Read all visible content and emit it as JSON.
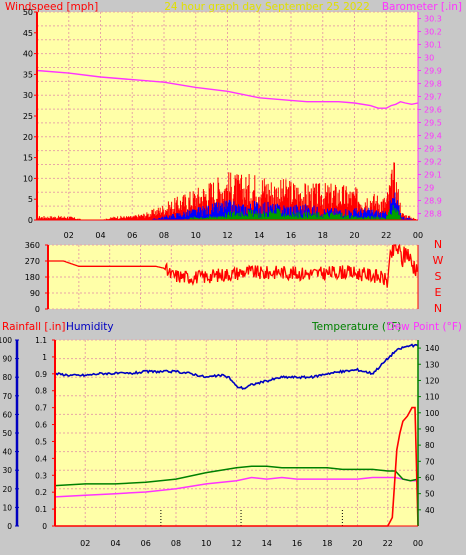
{
  "colors": {
    "background": "#c8c8c8",
    "plot_bg": "#ffffa8",
    "grid": "#e8a6a6",
    "wind": "#ff0000",
    "gust": "#0000ff",
    "wind3": "#00a000",
    "barometer": "#ff33ff",
    "direction": "#ff0000",
    "humidity": "#0000c0",
    "temperature": "#008000",
    "dew_point": "#ff33ff",
    "rain": "#ff0000",
    "header_title": "#e0e000"
  },
  "header": {
    "left": "Windspeed [mph]",
    "center": "24 hour graph day    September 25 2022",
    "right": "Barometer [.in]"
  },
  "chart_data": [
    {
      "type": "line",
      "name": "wind-barometer",
      "x_ticks": [
        "02",
        "04",
        "06",
        "08",
        "10",
        "12",
        "14",
        "16",
        "18",
        "20",
        "22",
        "00"
      ],
      "y_left_ticks": [
        "0",
        "5",
        "10",
        "15",
        "20",
        "25",
        "30",
        "35",
        "40",
        "45",
        "50"
      ],
      "y_right_ticks": [
        "28.8",
        "28.9",
        "29",
        "29.1",
        "29.2",
        "29.3",
        "29.4",
        "29.5",
        "29.6",
        "29.7",
        "29.8",
        "29.9",
        "30",
        "30.1",
        "30.2",
        "30.3"
      ],
      "xlim": [
        0,
        24
      ],
      "ylim_left": [
        0,
        50
      ],
      "ylim_right": [
        28.75,
        30.35
      ],
      "barometer_series": {
        "x": [
          0,
          2,
          4,
          6,
          8,
          10,
          12,
          14,
          16,
          17,
          18,
          19,
          20,
          21,
          21.5,
          22,
          22.3,
          22.6,
          22.9,
          23.2,
          23.6,
          24
        ],
        "values": [
          29.9,
          29.88,
          29.85,
          29.83,
          29.81,
          29.77,
          29.74,
          29.69,
          29.67,
          29.66,
          29.66,
          29.66,
          29.65,
          29.63,
          29.61,
          29.61,
          29.63,
          29.64,
          29.66,
          29.65,
          29.64,
          29.65
        ]
      },
      "wind_envelope": {
        "x": [
          0,
          1,
          2,
          3,
          4,
          5,
          6,
          7,
          8,
          9,
          10,
          11,
          12,
          13,
          14,
          15,
          16,
          17,
          18,
          19,
          20,
          21,
          22,
          22.5,
          23,
          24
        ],
        "values": [
          1,
          1,
          1,
          0,
          0,
          1,
          1,
          2,
          4,
          6,
          8,
          10,
          12,
          11,
          12,
          10,
          10,
          9,
          9,
          9,
          8,
          7,
          6,
          15,
          2,
          0
        ]
      },
      "gust_envelope": {
        "x": [
          0,
          7,
          8,
          9,
          10,
          11,
          12,
          13,
          14,
          15,
          16,
          17,
          18,
          19,
          20,
          21,
          22,
          22.5,
          23,
          24
        ],
        "values": [
          0,
          0,
          1,
          2,
          3,
          4,
          5,
          4,
          5,
          4,
          4,
          4,
          3,
          3,
          3,
          3,
          2,
          8,
          1,
          0
        ]
      },
      "wind3_envelope": {
        "x": [
          0,
          8,
          9,
          10,
          11,
          12,
          13,
          14,
          15,
          16,
          17,
          18,
          19,
          20,
          21,
          22,
          22.5,
          23,
          24
        ],
        "values": [
          0,
          0,
          0,
          1,
          1,
          2,
          3,
          2,
          3,
          2,
          2,
          2,
          2,
          1,
          1,
          1,
          5,
          0,
          0
        ]
      }
    },
    {
      "type": "line",
      "name": "wind-direction",
      "y_ticks": [
        "0",
        "90",
        "180",
        "270",
        "360"
      ],
      "compass_labels": [
        "N",
        "W",
        "S",
        "E",
        "N"
      ],
      "ylim": [
        0,
        360
      ],
      "series": {
        "x": [
          0,
          1,
          2,
          3,
          4,
          5,
          6,
          7,
          7.5,
          8,
          9,
          10,
          11,
          12,
          13,
          14,
          15,
          16,
          17,
          18,
          19,
          20,
          21,
          21.5,
          22,
          22.3,
          22.6,
          23,
          23.3,
          23.6,
          24
        ],
        "values": [
          270,
          270,
          240,
          240,
          240,
          240,
          240,
          240,
          230,
          190,
          180,
          180,
          190,
          200,
          210,
          200,
          210,
          200,
          200,
          200,
          210,
          200,
          190,
          180,
          160,
          320,
          350,
          280,
          330,
          250,
          240
        ]
      }
    },
    {
      "type": "line",
      "name": "rain-humidity-temperature",
      "header_left": [
        "Rainfall [.in]",
        "Humidity"
      ],
      "header_right": [
        "Temperature (°F)",
        "Dew Point (°F)"
      ],
      "x_ticks": [
        "02",
        "04",
        "06",
        "08",
        "10",
        "12",
        "14",
        "16",
        "18",
        "20",
        "22",
        "00"
      ],
      "humidity_ticks": [
        "0",
        "10",
        "20",
        "30",
        "40",
        "50",
        "60",
        "70",
        "80",
        "90",
        "100"
      ],
      "rain_ticks": [
        "0",
        "0.1",
        "0.2",
        "0.3",
        "0.4",
        "0.5",
        "0.6",
        "0.7",
        "0.8",
        "0.9",
        "1",
        "1.1"
      ],
      "temp_ticks": [
        "40",
        "50",
        "60",
        "70",
        "80",
        "90",
        "100",
        "110",
        "120",
        "130",
        "140"
      ],
      "xlim": [
        0,
        24
      ],
      "humidity": {
        "x": [
          0,
          1,
          2,
          3,
          4,
          5,
          6,
          7,
          8,
          9,
          10,
          11,
          11.5,
          12,
          12.5,
          13,
          14,
          15,
          16,
          17,
          18,
          19,
          20,
          21,
          21.5,
          22,
          22.5,
          23,
          23.5,
          24
        ],
        "values": [
          82,
          81,
          81,
          82,
          82,
          82,
          83,
          83,
          83,
          82,
          80,
          81,
          80,
          75,
          74,
          76,
          78,
          80,
          80,
          80,
          82,
          83,
          84,
          82,
          86,
          90,
          94,
          96,
          97,
          97
        ]
      },
      "temperature": {
        "x": [
          0,
          2,
          4,
          6,
          8,
          10,
          12,
          13,
          14,
          15,
          16,
          17,
          18,
          19,
          20,
          21,
          22,
          22.5,
          23,
          23.5,
          24
        ],
        "values": [
          55,
          56,
          56,
          57,
          59,
          63,
          66,
          67,
          67,
          66,
          66,
          66,
          66,
          65,
          65,
          65,
          64,
          64,
          59,
          58,
          59
        ]
      },
      "dew_point": {
        "x": [
          0,
          2,
          4,
          6,
          8,
          10,
          12,
          13,
          14,
          15,
          16,
          17,
          18,
          19,
          20,
          21,
          22,
          22.5,
          23,
          23.5,
          24
        ],
        "values": [
          48,
          49,
          50,
          51,
          53,
          56,
          58,
          60,
          59,
          60,
          59,
          59,
          59,
          59,
          59,
          60,
          60,
          60,
          59,
          58,
          58
        ]
      },
      "rain": {
        "x": [
          0,
          21,
          22,
          22.3,
          22.6,
          22.8,
          23,
          23.3,
          23.6,
          23.8,
          24
        ],
        "values": [
          0,
          0,
          0,
          0.05,
          0.45,
          0.55,
          0.62,
          0.65,
          0.7,
          0.7,
          0
        ]
      }
    }
  ]
}
